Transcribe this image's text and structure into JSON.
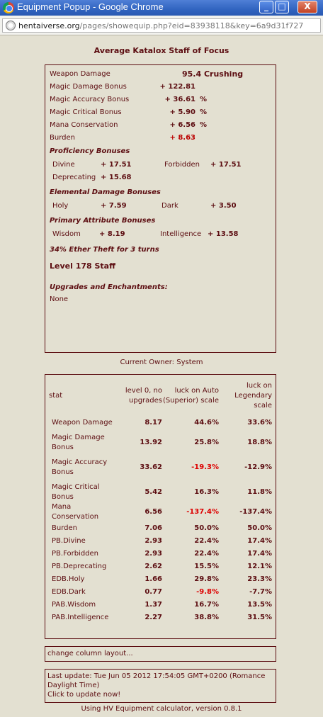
{
  "window": {
    "title": "Equipment Popup - Google Chrome",
    "url_host": "hentaiverse.org",
    "url_path": "/pages/showequip.php?eid=83938118&key=6a9d31f727",
    "min_label": "_",
    "max_label": "□",
    "close_label": "X"
  },
  "item": {
    "name": "Average Katalox Staff of Focus",
    "weapon_damage_label": "Weapon Damage",
    "weapon_damage_value": "95.4 Crushing",
    "stats": [
      {
        "label": "Magic Damage Bonus",
        "value": "+ 122.81",
        "unit": ""
      },
      {
        "label": "Magic Accuracy Bonus",
        "value": "+ 36.61",
        "unit": "%"
      },
      {
        "label": "Magic Critical Bonus",
        "value": "+ 5.90",
        "unit": "%"
      },
      {
        "label": "Mana Conservation",
        "value": "+ 6.56",
        "unit": "%"
      },
      {
        "label": "Burden",
        "value": "+ 8.63",
        "unit": ""
      }
    ],
    "proficiency": {
      "title": "Proficiency Bonuses",
      "a_label": "Divine",
      "a_value": "+ 17.51",
      "b_label": "Forbidden",
      "b_value": "+ 17.51",
      "c_label": "Deprecating",
      "c_value": "+ 15.68"
    },
    "elemental": {
      "title": "Elemental Damage Bonuses",
      "a_label": "Holy",
      "a_value": "+ 7.59",
      "b_label": "Dark",
      "b_value": "+ 3.50"
    },
    "primary": {
      "title": "Primary Attribute Bonuses",
      "a_label": "Wisdom",
      "a_value": "+ 8.19",
      "b_label": "Intelligence",
      "b_value": "+ 13.58"
    },
    "ether_theft": "34% Ether Theft for 3 turns",
    "level": "Level 178 Staff",
    "upgrades_title": "Upgrades and Enchantments:",
    "upgrades_value": "None"
  },
  "owner": "Current Owner: System",
  "calc": {
    "headers": [
      "stat",
      "level 0, no upgrades",
      "luck on Auto (Superior) scale",
      "luck on Legendary scale"
    ],
    "rows": [
      {
        "stat": "Weapon Damage",
        "base": "8.17",
        "auto": "44.6%",
        "legend": "33.6%",
        "auto_neg": false
      },
      {
        "stat": "Magic Damage Bonus",
        "base": "13.92",
        "auto": "25.8%",
        "legend": "18.8%",
        "auto_neg": false
      },
      {
        "stat": "Magic Accuracy Bonus",
        "base": "33.62",
        "auto": "-19.3%",
        "legend": "-12.9%",
        "auto_neg": true
      },
      {
        "stat": "Magic Critical Bonus",
        "base": "5.42",
        "auto": "16.3%",
        "legend": "11.8%",
        "auto_neg": false
      },
      {
        "stat": "Mana Conservation",
        "base": "6.56",
        "auto": "-137.4%",
        "legend": "-137.4%",
        "auto_neg": true
      },
      {
        "stat": "Burden",
        "base": "7.06",
        "auto": "50.0%",
        "legend": "50.0%",
        "auto_neg": false
      },
      {
        "stat": "PB.Divine",
        "base": "2.93",
        "auto": "22.4%",
        "legend": "17.4%",
        "auto_neg": false
      },
      {
        "stat": "PB.Forbidden",
        "base": "2.93",
        "auto": "22.4%",
        "legend": "17.4%",
        "auto_neg": false
      },
      {
        "stat": "PB.Deprecating",
        "base": "2.62",
        "auto": "15.5%",
        "legend": "12.1%",
        "auto_neg": false
      },
      {
        "stat": "EDB.Holy",
        "base": "1.66",
        "auto": "29.8%",
        "legend": "23.3%",
        "auto_neg": false
      },
      {
        "stat": "EDB.Dark",
        "base": "0.77",
        "auto": "-9.8%",
        "legend": "-7.7%",
        "auto_neg": true
      },
      {
        "stat": "PAB.Wisdom",
        "base": "1.37",
        "auto": "16.7%",
        "legend": "13.5%",
        "auto_neg": false
      },
      {
        "stat": "PAB.Intelligence",
        "base": "2.27",
        "auto": "38.8%",
        "legend": "31.5%",
        "auto_neg": false
      }
    ],
    "change_layout": "change column layout...",
    "last_update": "Last update: Tue Jun 05 2012 17:54:05 GMT+0200 (Romance Daylight Time)",
    "update_link": "Click to update now!",
    "footer": "Using HV Equipment calculator, version 0.8.1"
  },
  "colors": {
    "text": "#5c0d11",
    "background": "#e3e0d1",
    "negative": "#d00000"
  }
}
